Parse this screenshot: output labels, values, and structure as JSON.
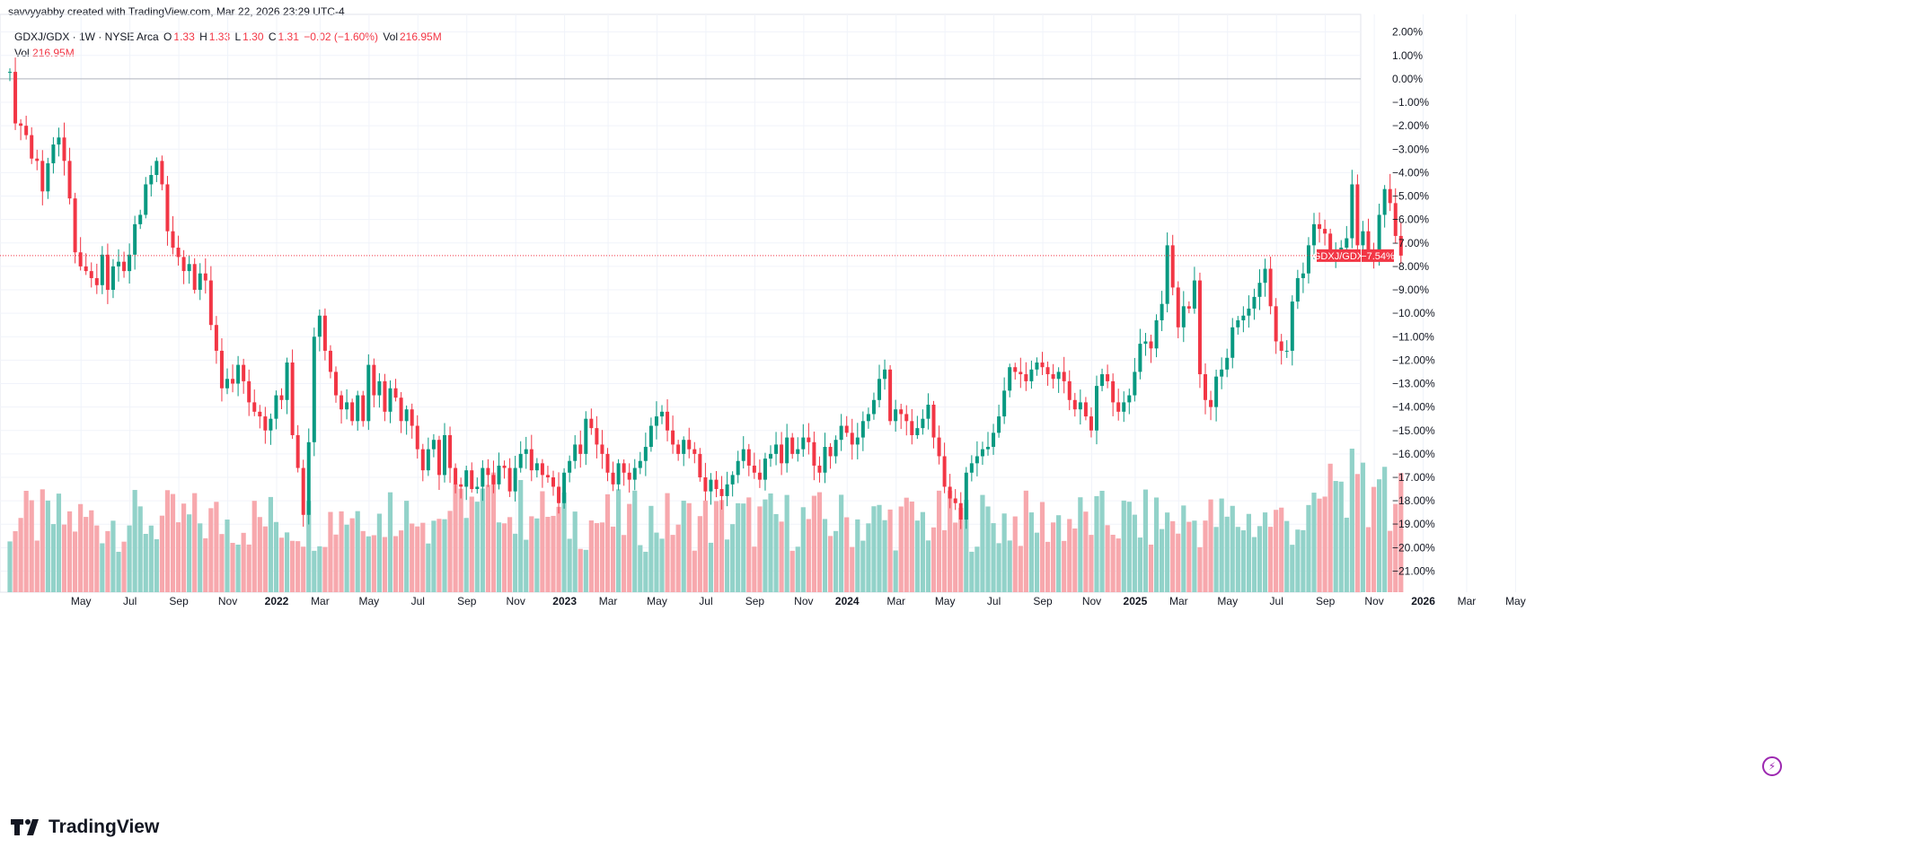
{
  "header": {
    "credit": "savvyyabby created with TradingView.com, Mar 22, 2026 23:29 UTC-4"
  },
  "legend": {
    "symbol": "GDXJ/GDX · 1W · NYSE Arca",
    "o_label": "O",
    "o_value": "1.33",
    "h_label": "H",
    "h_value": "1.33",
    "l_label": "L",
    "l_value": "1.30",
    "c_label": "C",
    "c_value": "1.31",
    "change": "−0.02 (−1.60%)",
    "vol_label": "Vol",
    "vol_value": "216.95M"
  },
  "volume_line": {
    "label": "Vol",
    "value": "216.95M"
  },
  "price_tag": {
    "name": "GDXJ/GDX",
    "value": "−7.54%"
  },
  "footer": {
    "brand": "TradingView"
  },
  "colors": {
    "up": "#089981",
    "down": "#f23645",
    "vol_up": "#92d2c9",
    "vol_down": "#f7a8ad",
    "grid": "#f0f3fa"
  },
  "chart_data": {
    "type": "candlestick",
    "title": "GDXJ/GDX · 1W · NYSE Arca",
    "y_axis": {
      "unit": "%",
      "range": [
        -21.9,
        2.6
      ],
      "ticks": [
        "2.00%",
        "1.00%",
        "0.00%",
        "−1.00%",
        "−2.00%",
        "−3.00%",
        "−4.00%",
        "−5.00%",
        "−6.00%",
        "−7.00%",
        "−8.00%",
        "−9.00%",
        "−10.00%",
        "−11.00%",
        "−12.00%",
        "−13.00%",
        "−14.00%",
        "−15.00%",
        "−16.00%",
        "−17.00%",
        "−18.00%",
        "−19.00%",
        "−20.00%",
        "−21.00%"
      ],
      "tick_values": [
        2,
        1,
        0,
        -1,
        -2,
        -3,
        -4,
        -5,
        -6,
        -7,
        -8,
        -9,
        -10,
        -11,
        -12,
        -13,
        -14,
        -15,
        -16,
        -17,
        -18,
        -19,
        -20,
        -21
      ]
    },
    "x_axis": {
      "ticks": [
        {
          "label": "May",
          "week": 4,
          "bold": false
        },
        {
          "label": "Jul",
          "week": 13,
          "bold": false
        },
        {
          "label": "Sep",
          "week": 22,
          "bold": false
        },
        {
          "label": "Nov",
          "week": 31,
          "bold": false
        },
        {
          "label": "2022",
          "week": 40,
          "bold": true
        },
        {
          "label": "Mar",
          "week": 48,
          "bold": false
        },
        {
          "label": "May",
          "week": 57,
          "bold": false
        },
        {
          "label": "Jul",
          "week": 66,
          "bold": false
        },
        {
          "label": "Sep",
          "week": 75,
          "bold": false
        },
        {
          "label": "Nov",
          "week": 84,
          "bold": false
        },
        {
          "label": "2023",
          "week": 93,
          "bold": true
        },
        {
          "label": "Mar",
          "week": 101,
          "bold": false
        },
        {
          "label": "May",
          "week": 110,
          "bold": false
        },
        {
          "label": "Jul",
          "week": 119,
          "bold": false
        },
        {
          "label": "Sep",
          "week": 128,
          "bold": false
        },
        {
          "label": "Nov",
          "week": 137,
          "bold": false
        },
        {
          "label": "2024",
          "week": 145,
          "bold": true
        },
        {
          "label": "Mar",
          "week": 154,
          "bold": false
        },
        {
          "label": "May",
          "week": 163,
          "bold": false
        },
        {
          "label": "Jul",
          "week": 172,
          "bold": false
        },
        {
          "label": "Sep",
          "week": 181,
          "bold": false
        },
        {
          "label": "Nov",
          "week": 190,
          "bold": false
        },
        {
          "label": "2025",
          "week": 198,
          "bold": true
        },
        {
          "label": "Mar",
          "week": 206,
          "bold": false
        },
        {
          "label": "May",
          "week": 215,
          "bold": false
        },
        {
          "label": "Jul",
          "week": 224,
          "bold": false
        },
        {
          "label": "Sep",
          "week": 233,
          "bold": false
        },
        {
          "label": "Nov",
          "week": 242,
          "bold": false
        },
        {
          "label": "2026",
          "week": 251,
          "bold": true
        },
        {
          "label": "Mar",
          "week": 259,
          "bold": false
        },
        {
          "label": "May",
          "week": 268,
          "bold": false
        }
      ]
    },
    "reference_line": 0.0,
    "last_value": -7.54,
    "closes": [
      0.3,
      -1.9,
      -2.0,
      -2.4,
      -3.4,
      -3.5,
      -4.8,
      -3.6,
      -2.8,
      -2.5,
      -3.5,
      -5.1,
      -7.4,
      -8.0,
      -8.2,
      -8.5,
      -8.8,
      -7.5,
      -9.0,
      -8.0,
      -7.8,
      -8.2,
      -7.5,
      -6.2,
      -5.8,
      -4.5,
      -4.1,
      -3.5,
      -4.5,
      -6.5,
      -7.2,
      -7.6,
      -8.2,
      -7.9,
      -9.0,
      -8.3,
      -8.6,
      -10.5,
      -11.6,
      -13.2,
      -12.8,
      -13.0,
      -12.2,
      -12.9,
      -13.8,
      -14.2,
      -14.4,
      -15.0,
      -14.5,
      -13.5,
      -13.7,
      -12.1,
      -15.2,
      -16.6,
      -18.6,
      -15.5,
      -11.0,
      -10.1,
      -11.6,
      -12.5,
      -13.5,
      -14.1,
      -13.8,
      -14.6,
      -13.5,
      -14.6,
      -12.2,
      -13.5,
      -12.9,
      -14.2,
      -13.2,
      -13.6,
      -14.6,
      -14.1,
      -14.8,
      -15.8,
      -16.7,
      -15.8,
      -15.4,
      -16.9,
      -15.2,
      -16.6,
      -17.3,
      -17.4,
      -16.7,
      -17.5,
      -17.4,
      -16.6,
      -16.9,
      -17.3,
      -16.5,
      -16.6,
      -17.6,
      -16.6,
      -16.0,
      -15.8,
      -16.7,
      -16.4,
      -16.9,
      -17.0,
      -17.4,
      -18.1,
      -16.8,
      -16.3,
      -15.6,
      -16.0,
      -14.5,
      -14.9,
      -15.6,
      -16.0,
      -16.8,
      -17.3,
      -16.4,
      -16.8,
      -17.1,
      -16.6,
      -16.3,
      -15.7,
      -14.8,
      -14.4,
      -14.2,
      -15.0,
      -15.6,
      -16.0,
      -15.4,
      -15.8,
      -16.0,
      -17.0,
      -17.6,
      -17.1,
      -17.5,
      -17.8,
      -17.3,
      -16.9,
      -16.3,
      -15.8,
      -16.5,
      -16.8,
      -17.1,
      -16.2,
      -16.0,
      -15.6,
      -16.4,
      -15.3,
      -16.0,
      -15.8,
      -15.3,
      -15.5,
      -16.5,
      -16.8,
      -15.7,
      -16.1,
      -15.4,
      -14.8,
      -15.1,
      -15.6,
      -15.3,
      -14.6,
      -14.3,
      -13.7,
      -12.8,
      -12.4,
      -14.6,
      -14.1,
      -14.3,
      -14.6,
      -15.2,
      -14.9,
      -14.5,
      -13.9,
      -15.3,
      -16.1,
      -17.4,
      -17.9,
      -18.1,
      -18.8,
      -16.8,
      -16.4,
      -16.1,
      -15.8,
      -15.7,
      -15.1,
      -14.4,
      -13.3,
      -12.3,
      -12.5,
      -12.6,
      -12.9,
      -12.4,
      -12.1,
      -12.3,
      -12.6,
      -12.8,
      -12.5,
      -12.9,
      -13.7,
      -14.1,
      -13.8,
      -14.4,
      -15.0,
      -13.1,
      -12.6,
      -12.9,
      -13.8,
      -14.2,
      -13.8,
      -13.5,
      -12.5,
      -11.3,
      -11.2,
      -11.5,
      -10.3,
      -9.6,
      -7.1,
      -8.9,
      -10.6,
      -9.7,
      -9.8,
      -8.6,
      -12.6,
      -13.7,
      -14.0,
      -12.7,
      -12.4,
      -11.9,
      -10.6,
      -10.3,
      -10.1,
      -9.8,
      -9.3,
      -8.7,
      -8.1,
      -9.7,
      -11.2,
      -11.6,
      -11.6,
      -9.5,
      -8.5,
      -8.3,
      -7.1,
      -6.2,
      -6.4,
      -6.6,
      -7.5,
      -7.3,
      -7.2,
      -6.8,
      -4.5,
      -7.1,
      -6.5,
      -7.3,
      -7.6,
      -5.8,
      -4.7,
      -5.3,
      -6.7,
      -7.54
    ],
    "volume_shape": "weekly volume bars along bottom of pane, colored by candle direction, spikes near 2026"
  }
}
